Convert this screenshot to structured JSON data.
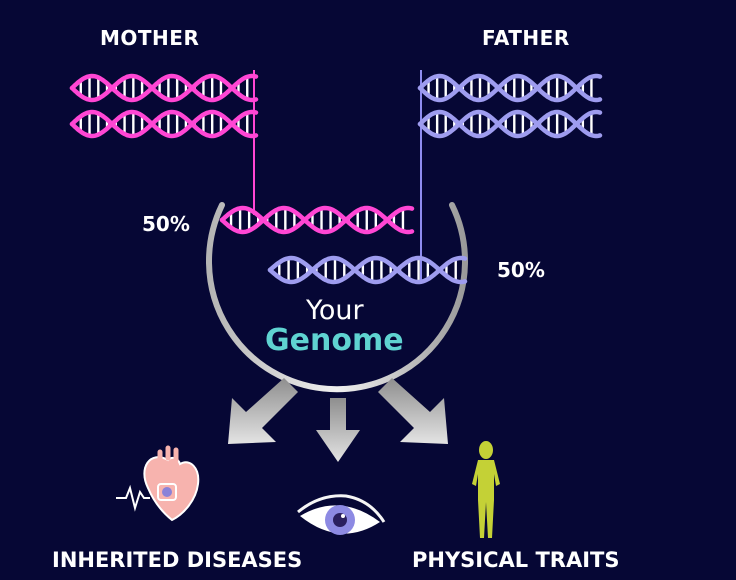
{
  "labels": {
    "mother": "MOTHER",
    "father": "FATHER",
    "mother_share": "50%",
    "father_share": "50%",
    "your": "Your",
    "genome": "Genome",
    "inherited_diseases": "INHERITED DISEASES",
    "physical_traits": "PHYSICAL TRAITS"
  },
  "colors": {
    "background": "#060735",
    "mother_dna": "#ff46d4",
    "father_dna": "#9e9cef",
    "genome_text": "#5fd3d1",
    "arrow": "#cfcfcf",
    "heart": "#f7b3ae",
    "figure": "#c4d136",
    "eye": "#8d8ae3"
  },
  "icons": [
    "mother-dna-icon",
    "father-dna-icon",
    "heart-icon",
    "eye-icon",
    "person-silhouette-icon",
    "arrow-down-icon"
  ]
}
